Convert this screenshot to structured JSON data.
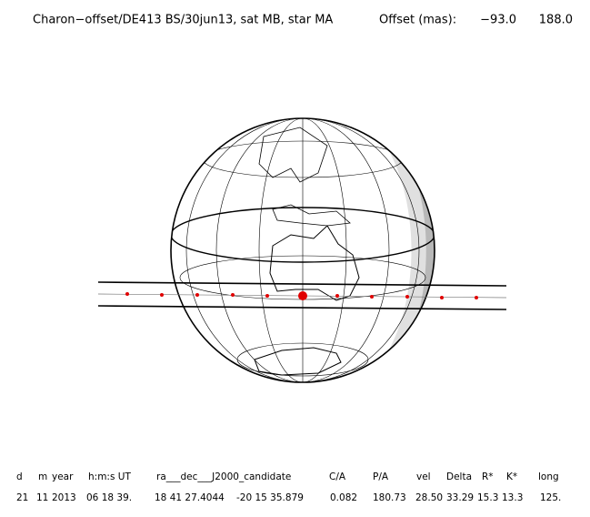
{
  "header": {
    "title": "Charon−offset/DE413 BS/30jun13, sat MB, star MA",
    "offset_label": "Offset (mas):",
    "offset_values": [
      "−93.0",
      "188.0"
    ]
  },
  "table": {
    "columns": [
      "d",
      "m",
      "year",
      "h:m:s UT",
      "ra___dec___J2000_candidate",
      "C/A",
      "P/A",
      "vel",
      "Delta",
      "R*",
      "K*",
      "long"
    ],
    "rows": [
      [
        "21",
        "11",
        "2013",
        "06 18 39.",
        "18 41 27.4044",
        "-20 15 35.879",
        "0.082",
        "180.73",
        "28.50",
        "33.29",
        "15.3",
        "13.3",
        "125."
      ]
    ]
  }
}
